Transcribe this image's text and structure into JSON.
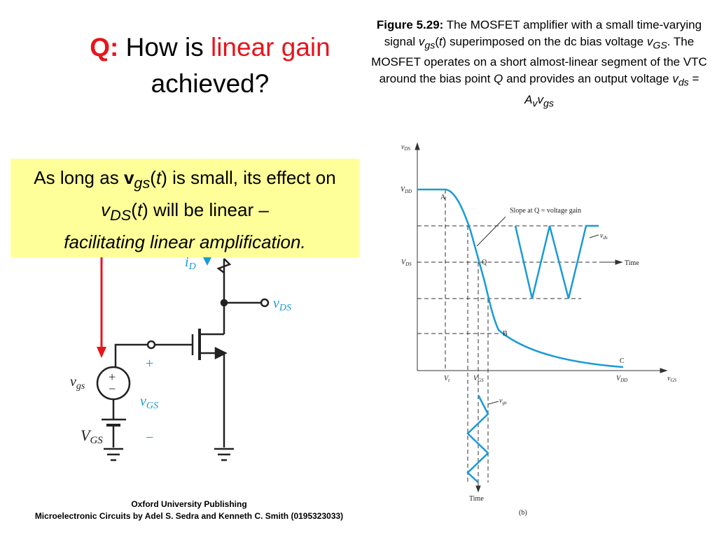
{
  "title": {
    "parts": [
      "Q:",
      "How is",
      "linear gain",
      "achieved?"
    ]
  },
  "caption": {
    "parts": [
      "Figure 5.29:",
      "The MOSFET amplifier with a small time-varying signal",
      "v",
      "gs",
      "(",
      "t",
      ") superimposed on the dc bias voltage",
      "v",
      "GS",
      ". The MOSFET operates on a short almost-linear segment of the VTC around the bias point",
      "Q",
      "and provides an output voltage",
      "v",
      "ds",
      "=",
      "A",
      "v",
      "v",
      "gs"
    ]
  },
  "callout": {
    "parts": [
      "As long as",
      "v",
      "gs",
      "(",
      "t",
      ") is small, its effect on",
      "v",
      "DS",
      "(",
      "t",
      ") will be linear –",
      "facilitating linear amplification."
    ]
  },
  "circuit": {
    "labels": [
      "i",
      "D",
      "v",
      "DS",
      "v",
      "gs",
      "+",
      "−",
      "v",
      "GS",
      "V",
      "GS",
      "+",
      "−"
    ]
  },
  "graph": {
    "labels": [
      "v",
      "DS",
      "V",
      "DD",
      "V",
      "DS",
      "A",
      "Q",
      "B",
      "C",
      "V",
      "t",
      "V",
      "GS",
      "V",
      "DD",
      "v",
      "GS",
      "Time",
      "Time",
      "v",
      "ds",
      "v",
      "gs",
      "Slope at Q = voltage gain",
      "(b)"
    ]
  },
  "footer": {
    "publisher": "Oxford University Publishing",
    "book": "Microelectronic Circuits by Adel S. Sedra and Kenneth C. Smith (0195323033)"
  }
}
